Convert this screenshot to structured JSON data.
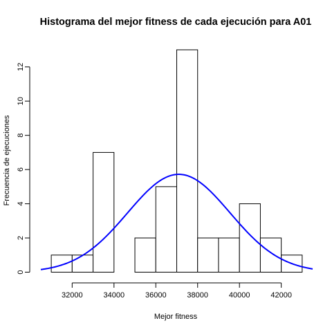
{
  "chart_data": {
    "type": "bar",
    "title": "Histograma del mejor fitness de cada ejecución para A01",
    "xlabel": "Mejor fitness",
    "ylabel": "Frecuencia de ejecuciones",
    "bins": [
      {
        "start": 31000,
        "end": 32000,
        "count": 1
      },
      {
        "start": 32000,
        "end": 33000,
        "count": 1
      },
      {
        "start": 33000,
        "end": 34000,
        "count": 7
      },
      {
        "start": 34000,
        "end": 35000,
        "count": 0
      },
      {
        "start": 35000,
        "end": 36000,
        "count": 2
      },
      {
        "start": 36000,
        "end": 37000,
        "count": 5
      },
      {
        "start": 37000,
        "end": 38000,
        "count": 13
      },
      {
        "start": 38000,
        "end": 39000,
        "count": 2
      },
      {
        "start": 39000,
        "end": 40000,
        "count": 2
      },
      {
        "start": 40000,
        "end": 41000,
        "count": 4
      },
      {
        "start": 41000,
        "end": 42000,
        "count": 2
      },
      {
        "start": 42000,
        "end": 43000,
        "count": 1
      }
    ],
    "x_ticks": [
      32000,
      34000,
      36000,
      38000,
      40000,
      42000
    ],
    "y_ticks": [
      0,
      2,
      4,
      6,
      8,
      10,
      12
    ],
    "xlim": [
      30500,
      43500
    ],
    "ylim": [
      0,
      13
    ],
    "normal_curve": {
      "color": "#0000ff",
      "mean": 37100,
      "sd": 2450,
      "peak": 5.72,
      "x_range": [
        30500,
        43500
      ]
    },
    "bar_fill": "#ffffff",
    "bar_stroke": "#000000",
    "grid": false,
    "legend": "none"
  }
}
